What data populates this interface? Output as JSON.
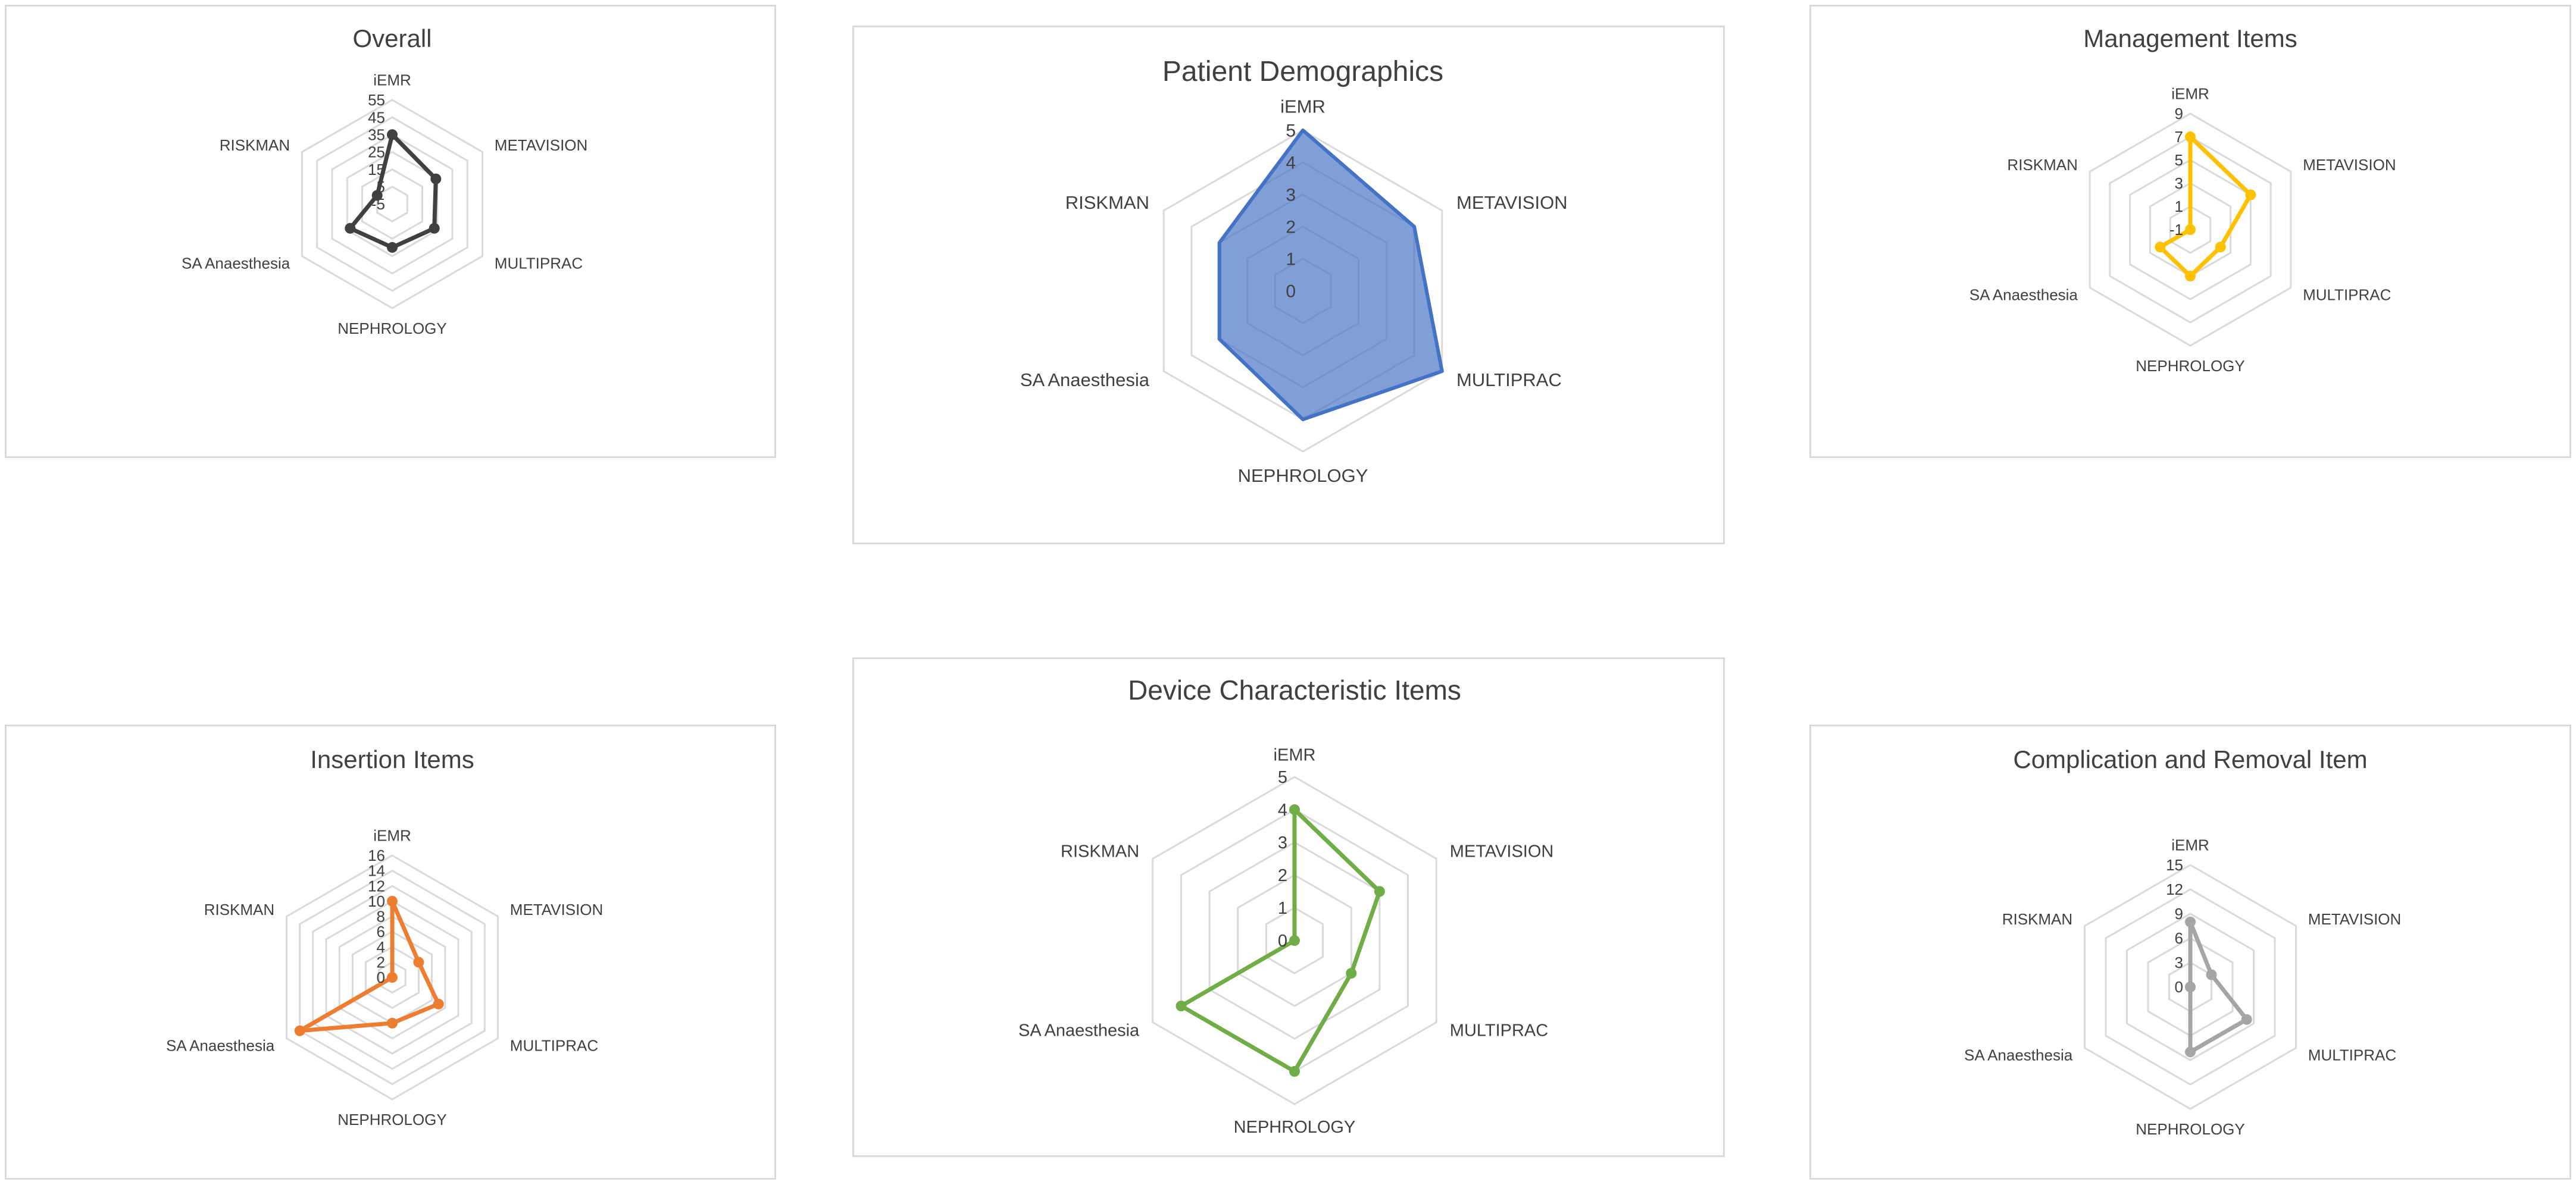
{
  "chart_data": [
    {
      "type": "radar",
      "title": "Overall",
      "categories": [
        "iEMR",
        "METAVISION",
        "MULTIPRAC",
        "NEPHROLOGY",
        "SA Anaesthesia",
        "RISKMAN"
      ],
      "ticks": [
        "-5",
        "5",
        "15",
        "25",
        "35",
        "45",
        "55"
      ],
      "rlim": [
        -5,
        55
      ],
      "grid": true,
      "filled": false,
      "color": "#404040",
      "series": [
        {
          "values": [
            35,
            24,
            23,
            20,
            23,
            5
          ]
        }
      ]
    },
    {
      "type": "radar",
      "title": "Patient Demographics",
      "categories": [
        "iEMR",
        "METAVISION",
        "MULTIPRAC",
        "NEPHROLOGY",
        "SA Anaesthesia",
        "RISKMAN"
      ],
      "ticks": [
        "0",
        "1",
        "2",
        "3",
        "4",
        "5"
      ],
      "rlim": [
        0,
        5
      ],
      "grid": true,
      "filled": true,
      "color": "#4472c4",
      "series": [
        {
          "values": [
            5,
            4,
            5,
            4,
            3,
            3
          ]
        }
      ]
    },
    {
      "type": "radar",
      "title": "Management Items",
      "categories": [
        "iEMR",
        "METAVISION",
        "MULTIPRAC",
        "NEPHROLOGY",
        "SA Anaesthesia",
        "RISKMAN"
      ],
      "ticks": [
        "-1",
        "1",
        "3",
        "5",
        "7",
        "9"
      ],
      "rlim": [
        -1,
        9
      ],
      "grid": true,
      "filled": false,
      "color": "#ffc000",
      "series": [
        {
          "values": [
            7,
            5,
            2,
            3,
            2,
            -1
          ]
        }
      ]
    },
    {
      "type": "radar",
      "title": "Insertion Items",
      "categories": [
        "iEMR",
        "METAVISION",
        "MULTIPRAC",
        "NEPHROLOGY",
        "SA Anaesthesia",
        "RISKMAN"
      ],
      "ticks": [
        "0",
        "2",
        "4",
        "6",
        "8",
        "10",
        "12",
        "14",
        "16"
      ],
      "rlim": [
        0,
        16
      ],
      "grid": true,
      "filled": false,
      "color": "#ed7d31",
      "series": [
        {
          "values": [
            10,
            4,
            7,
            6,
            14,
            0
          ]
        }
      ]
    },
    {
      "type": "radar",
      "title": "Device Characteristic Items",
      "categories": [
        "iEMR",
        "METAVISION",
        "MULTIPRAC",
        "NEPHROLOGY",
        "SA Anaesthesia",
        "RISKMAN"
      ],
      "ticks": [
        "0",
        "1",
        "2",
        "3",
        "4",
        "5"
      ],
      "rlim": [
        0,
        5
      ],
      "grid": true,
      "filled": false,
      "color": "#70ad47",
      "series": [
        {
          "values": [
            4,
            3,
            2,
            4,
            4,
            0
          ]
        }
      ]
    },
    {
      "type": "radar",
      "title": "Complication and Removal Item",
      "categories": [
        "iEMR",
        "METAVISION",
        "MULTIPRAC",
        "NEPHROLOGY",
        "SA Anaesthesia",
        "RISKMAN"
      ],
      "ticks": [
        "0",
        "3",
        "6",
        "9",
        "12",
        "15"
      ],
      "rlim": [
        0,
        15
      ],
      "grid": true,
      "filled": false,
      "color": "#a5a5a5",
      "series": [
        {
          "values": [
            8,
            3,
            8,
            8,
            0,
            0
          ]
        }
      ]
    }
  ]
}
